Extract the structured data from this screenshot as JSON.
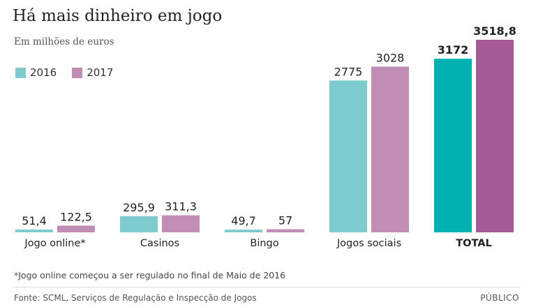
{
  "chart_data": {
    "type": "bar",
    "title": "Há mais dinheiro em jogo",
    "subtitle": "Em milhões de euros",
    "categories": [
      "Jogo online*",
      "Casinos",
      "Bingo",
      "Jogos sociais",
      "TOTAL"
    ],
    "series": [
      {
        "name": "2016",
        "values": [
          51.4,
          295.9,
          49.7,
          2775,
          3172
        ],
        "labels": [
          "51,4",
          "295,9",
          "49,7",
          "2775",
          "3172"
        ]
      },
      {
        "name": "2017",
        "values": [
          122.5,
          311.3,
          57,
          3028,
          3518.8
        ],
        "labels": [
          "122,5",
          "311,3",
          "57",
          "3028",
          "3518,8"
        ]
      }
    ],
    "ylim": [
      0,
      3518.8
    ],
    "grid": false,
    "legend_position": "top-left",
    "colors": {
      "2016": "#7ecbcf",
      "2017": "#c08db5",
      "total_2016": "#00b1b2",
      "total_2017": "#a35a96"
    }
  },
  "footnote": "*Jogo online começou a ser regulado no final de Maio de 2016",
  "source": "Fonte: SCML, Serviços de Regulação e Inspecção de Jogos",
  "brand": "PÚBLICO"
}
